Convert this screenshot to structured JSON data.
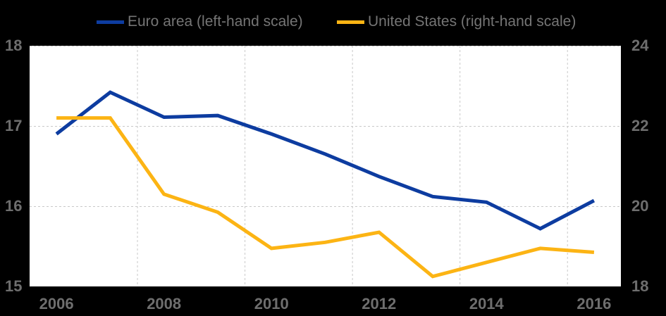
{
  "colors": {
    "background": "#000000",
    "plot_background": "#ffffff",
    "gridline": "#c9c9c9",
    "axis_text": "#6e6e6e",
    "legend_text": "#757575",
    "euro_area_line": "#0d3ca0",
    "united_states_line": "#fcb414"
  },
  "legend": {
    "items": [
      {
        "label": "Euro area (left-hand scale)",
        "color": "#0d3ca0"
      },
      {
        "label": "United States (right-hand scale)",
        "color": "#fcb414"
      }
    ]
  },
  "chart_data": {
    "type": "line",
    "title": "",
    "xlabel": "",
    "ylabel_left": "",
    "ylabel_right": "",
    "x": [
      2006,
      2007,
      2008,
      2009,
      2010,
      2011,
      2012,
      2013,
      2014,
      2015,
      2016
    ],
    "x_tick_labels": [
      "2006",
      "2008",
      "2010",
      "2012",
      "2014",
      "2016"
    ],
    "left_axis": {
      "range": [
        15,
        18
      ],
      "ticks": [
        18,
        17,
        16,
        15
      ],
      "tick_labels": [
        "18",
        "17",
        "16",
        "15"
      ]
    },
    "right_axis": {
      "range": [
        18,
        24
      ],
      "ticks": [
        24,
        22,
        20,
        18
      ],
      "tick_labels": [
        "24",
        "22",
        "20",
        "18"
      ]
    },
    "grid": {
      "horizontal": "dashed at left ticks 18/17/16",
      "vertical": "dashed at two-year category boundaries",
      "style": "dashed light gray on white"
    },
    "legend_position": "top",
    "series": [
      {
        "name": "Euro area (left-hand scale)",
        "axis": "left",
        "color": "#0d3ca0",
        "values": [
          16.9,
          17.42,
          17.11,
          17.13,
          16.9,
          16.65,
          16.37,
          16.12,
          16.05,
          15.72,
          16.07
        ]
      },
      {
        "name": "United States (right-hand scale)",
        "axis": "right",
        "color": "#fcb414",
        "values": [
          22.2,
          22.2,
          20.3,
          19.85,
          18.95,
          19.1,
          19.35,
          18.25,
          18.6,
          18.95,
          18.85
        ]
      }
    ]
  }
}
